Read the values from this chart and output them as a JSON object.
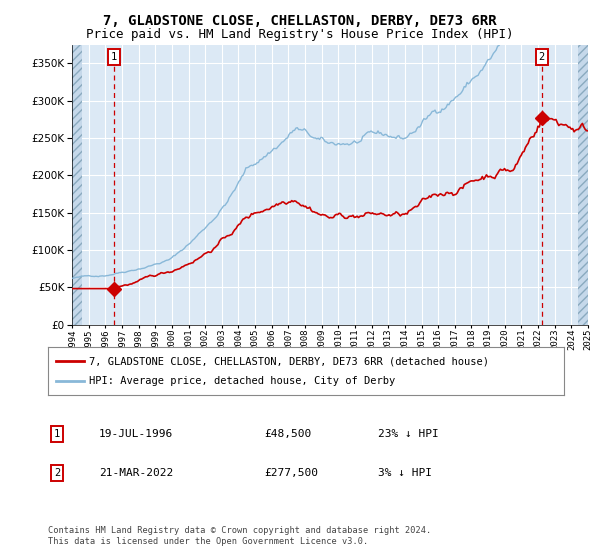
{
  "title": "7, GLADSTONE CLOSE, CHELLASTON, DERBY, DE73 6RR",
  "subtitle": "Price paid vs. HM Land Registry's House Price Index (HPI)",
  "title_fontsize": 10,
  "subtitle_fontsize": 9,
  "bg_color": "#dce9f5",
  "fig_color": "#ffffff",
  "grid_color": "#ffffff",
  "red_line_color": "#cc0000",
  "blue_line_color": "#89b8d8",
  "marker_color": "#cc0000",
  "vline_color": "#cc0000",
  "ylim": [
    0,
    375000
  ],
  "yticks": [
    0,
    50000,
    100000,
    150000,
    200000,
    250000,
    300000,
    350000
  ],
  "legend_label_red": "7, GLADSTONE CLOSE, CHELLASTON, DERBY, DE73 6RR (detached house)",
  "legend_label_blue": "HPI: Average price, detached house, City of Derby",
  "annotation1_date": "19-JUL-1996",
  "annotation1_price": "£48,500",
  "annotation1_hpi": "23% ↓ HPI",
  "annotation2_date": "21-MAR-2022",
  "annotation2_price": "£277,500",
  "annotation2_hpi": "3% ↓ HPI",
  "footnote": "Contains HM Land Registry data © Crown copyright and database right 2024.\nThis data is licensed under the Open Government Licence v3.0.",
  "x_start_year": 1994,
  "x_end_year": 2025,
  "sale1_year": 1996.54,
  "sale1_price": 48500,
  "sale2_year": 2022.22,
  "sale2_price": 277500
}
